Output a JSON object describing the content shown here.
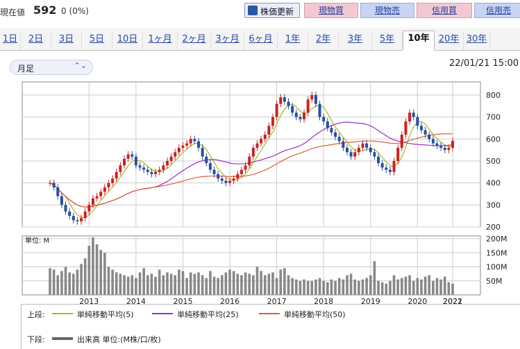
{
  "header": {
    "current_label": "現在値",
    "price": "592",
    "change": "0 (0%)",
    "refresh_label": "株価更新",
    "buttons": [
      "現物買",
      "現物売",
      "信用買",
      "信用売"
    ]
  },
  "tabs": [
    "1日",
    "2日",
    "3日",
    "5日",
    "10日",
    "1ヶ月",
    "2ヶ月",
    "3ヶ月",
    "6ヶ月",
    "1年",
    "2年",
    "3年",
    "5年",
    "10年",
    "20年",
    "30年"
  ],
  "active_tab": "10年",
  "period_select": "月足",
  "timestamp": "22/01/21 15:00",
  "volume_unit_label": "単位: M",
  "legend": {
    "upper_label": "上段:",
    "ma5": "単純移動平均(5)",
    "ma25": "単純移動平均(25)",
    "ma50": "単純移動平均(50)",
    "lower_label": "下段:",
    "volume": "出来高 単位:(M株/口/枚)"
  },
  "colors": {
    "up": "#cc2222",
    "down": "#2a4fa0",
    "ma5": "#a8b820",
    "ma25": "#9b2fc0",
    "ma50": "#d86030",
    "volume": "#888888"
  },
  "chart_data": {
    "type": "candlestick",
    "x_ticks": [
      "2013",
      "2014",
      "2015",
      "2016",
      "2017",
      "2018",
      "2019",
      "2020",
      "2021",
      "2022"
    ],
    "price_axis": [
      200,
      300,
      400,
      500,
      600,
      700,
      800
    ],
    "price_ylim": [
      200,
      860
    ],
    "volume_axis": [
      "50M",
      "100M",
      "150M",
      "200M"
    ],
    "volume_ylim": [
      0,
      210
    ],
    "close": [
      400,
      380,
      340,
      300,
      270,
      250,
      230,
      225,
      240,
      270,
      300,
      330,
      340,
      360,
      380,
      400,
      420,
      450,
      480,
      510,
      530,
      520,
      480,
      470,
      460,
      450,
      440,
      450,
      460,
      480,
      500,
      520,
      540,
      560,
      570,
      580,
      600,
      590,
      560,
      520,
      490,
      460,
      440,
      420,
      410,
      400,
      410,
      420,
      440,
      460,
      480,
      520,
      560,
      580,
      600,
      620,
      660,
      700,
      760,
      790,
      770,
      750,
      720,
      700,
      690,
      720,
      780,
      800,
      760,
      700,
      680,
      650,
      630,
      610,
      590,
      560,
      540,
      520,
      540,
      560,
      580,
      560,
      540,
      520,
      490,
      470,
      460,
      450,
      500,
      560,
      620,
      680,
      720,
      700,
      660,
      640,
      620,
      600,
      580,
      570,
      560,
      550,
      560,
      592
    ],
    "volume": [
      95,
      90,
      70,
      85,
      100,
      80,
      75,
      90,
      110,
      130,
      175,
      205,
      180,
      160,
      150,
      100,
      90,
      80,
      75,
      70,
      65,
      70,
      60,
      80,
      95,
      70,
      75,
      65,
      90,
      70,
      80,
      75,
      70,
      90,
      85,
      60,
      80,
      75,
      80,
      70,
      60,
      85,
      65,
      60,
      70,
      80,
      90,
      85,
      75,
      70,
      80,
      75,
      70,
      100,
      85,
      70,
      75,
      80,
      60,
      90,
      95,
      70,
      60,
      55,
      50,
      55,
      50,
      50,
      55,
      60,
      50,
      45,
      55,
      50,
      60,
      55,
      70,
      75,
      55,
      50,
      55,
      60,
      70,
      120,
      50,
      45,
      40,
      50,
      70,
      55,
      60,
      65,
      70,
      50,
      60,
      55,
      65,
      70,
      50,
      60,
      55,
      65,
      45,
      40
    ]
  }
}
